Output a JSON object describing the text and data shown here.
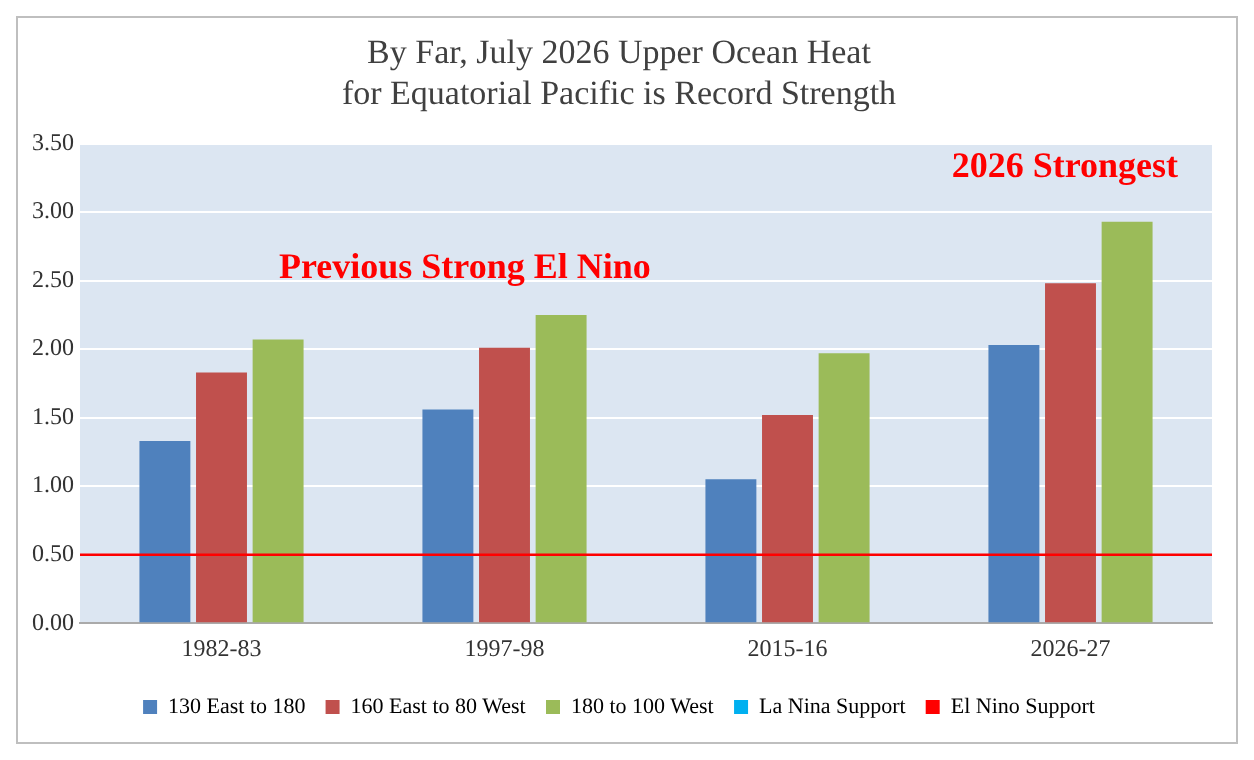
{
  "chart_data": {
    "type": "bar",
    "title": [
      "By Far, July 2026 Upper Ocean Heat",
      "for Equatorial Pacific is Record Strength"
    ],
    "categories": [
      "1982-83",
      "1997-98",
      "2015-16",
      "2026-27"
    ],
    "series": [
      {
        "name": "130 East to 180",
        "color": "#4f81bd",
        "values": [
          1.33,
          1.56,
          1.05,
          2.03
        ]
      },
      {
        "name": "160 East to 80 West",
        "color": "#c0504d",
        "values": [
          1.83,
          2.01,
          1.52,
          2.48
        ]
      },
      {
        "name": "180 to 100 West",
        "color": "#9bbb59",
        "values": [
          2.07,
          2.25,
          1.97,
          2.93
        ]
      },
      {
        "name": "La Nina Support",
        "type": "line",
        "color": "#00b0f0",
        "values": [
          null,
          null,
          null,
          null
        ]
      }
    ],
    "ref_lines": [
      {
        "axis": "y",
        "value": 0.5,
        "label": "El Nino Support",
        "color": "#ff0000"
      }
    ],
    "annotations": [
      "Previous Strong El Nino",
      "2026 Strongest"
    ],
    "ylim": [
      0,
      3.5
    ],
    "yticks": [
      {
        "value": 0,
        "label": "0.00"
      },
      {
        "value": 0.5,
        "label": "0.50"
      },
      {
        "value": 1,
        "label": "1.00"
      },
      {
        "value": 1.5,
        "label": "1.50"
      },
      {
        "value": 2,
        "label": "2.00"
      },
      {
        "value": 2.5,
        "label": "2.50"
      },
      {
        "value": 3,
        "label": "3.00"
      },
      {
        "value": 3.5,
        "label": "3.50"
      }
    ],
    "grid": "y",
    "legend": "bottom"
  }
}
